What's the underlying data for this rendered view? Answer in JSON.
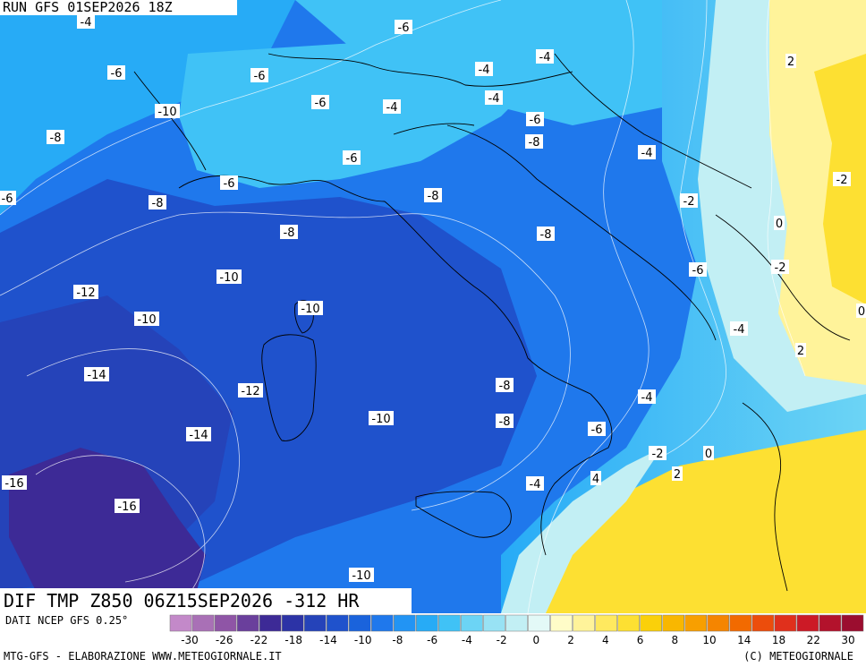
{
  "header": {
    "run_text": "RUN GFS 01SEP2026 18Z"
  },
  "title": {
    "text": "DIF TMP Z850 06Z15SEP2026 -312 HR"
  },
  "footer": {
    "source": "DATI NCEP GFS 0.25°",
    "left_credit": "MTG-GFS - ELABORAZIONE WWW.METEOGIORNALE.IT",
    "right_credit": "(C) METEOGIORNALE"
  },
  "legend": {
    "ticks": [
      "-30",
      "-26",
      "-22",
      "-18",
      "-14",
      "-10",
      "-8",
      "-6",
      "-4",
      "-2",
      "0",
      "2",
      "4",
      "6",
      "8",
      "10",
      "14",
      "18",
      "22",
      "30"
    ],
    "colors": [
      "#c389c9",
      "#a970b6",
      "#8f55a6",
      "#6a3f9c",
      "#3d2a96",
      "#2c33a6",
      "#2543b9",
      "#1f52cc",
      "#1a63dc",
      "#1f78ec",
      "#2294f4",
      "#27abf6",
      "#40c2f6",
      "#6cd4f5",
      "#98e2f4",
      "#c2eff4",
      "#e3f9f7",
      "#fffcc8",
      "#fff39a",
      "#ffe95f",
      "#fde032",
      "#fad00a",
      "#f9b700",
      "#f89f00",
      "#f58500",
      "#f26a00",
      "#ec4d0c",
      "#e0301c",
      "#cc1a26",
      "#b3122c",
      "#9b0d2f"
    ]
  },
  "contour_labels": [
    "-4",
    "-6",
    "-6",
    "-6",
    "-4",
    "-4",
    "-4",
    "-10",
    "-6",
    "-4",
    "-8",
    "-6",
    "-8",
    "-6",
    "-4",
    "-6",
    "-6",
    "-8",
    "-8",
    "-2",
    "-8",
    "-8",
    "-6",
    "-10",
    "-2",
    "-12",
    "-4",
    "-10",
    "-10",
    "-14",
    "-12",
    "-8",
    "-10",
    "-8",
    "-4",
    "-14",
    "-6",
    "-2",
    "-16",
    "-4",
    "-16",
    "-10",
    "2",
    "-2",
    "0",
    "0",
    "2",
    "0",
    "2",
    "4"
  ]
}
